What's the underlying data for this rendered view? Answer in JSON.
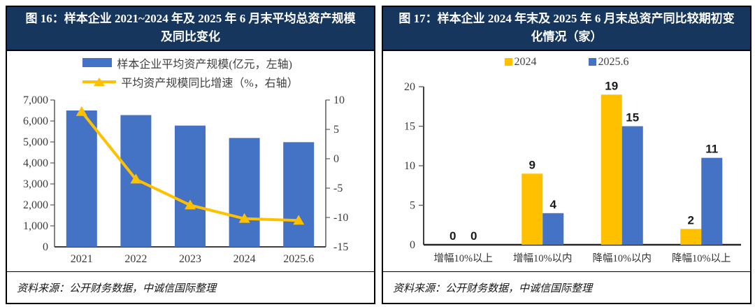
{
  "panels": [
    {
      "id": "figure-16",
      "source": "资料来源：公开财务数据，中诚信国际整理"
    },
    {
      "id": "figure-17",
      "source": "资料来源：公开财务数据，中诚信国际整理"
    }
  ],
  "colors": {
    "header_navy": "#17365D",
    "bar_blue": "#4472C4",
    "accent_yellow": "#FFC000",
    "axis_gray": "#595959"
  },
  "chart_data": [
    {
      "type": "bar+line",
      "title": "图 16：样本企业 2021~2024 年及 2025 年 6 月末平均总资产规模及同比变化",
      "categories": [
        "2021",
        "2022",
        "2023",
        "2024",
        "2025.6"
      ],
      "series": [
        {
          "name": "样本企业平均资产规模(亿元，左轴)",
          "kind": "bar",
          "axis": "left",
          "color": "#4472C4",
          "values": [
            6500,
            6280,
            5780,
            5190,
            4990
          ]
        },
        {
          "name": "平均资产规模同比增速（%，右轴）",
          "kind": "line",
          "axis": "right",
          "color": "#FFC000",
          "values": [
            8,
            -3.5,
            -7.9,
            -10.2,
            -10.5
          ]
        }
      ],
      "left_axis": {
        "min": 0,
        "max": 7000,
        "step": 1000,
        "tick_labels": [
          "7,000",
          "6,000",
          "5,000",
          "4,000",
          "3,000",
          "2,000",
          "1,000",
          "0"
        ]
      },
      "right_axis": {
        "min": -15,
        "max": 10,
        "step": 5,
        "tick_labels": [
          "10",
          "5",
          "0",
          "-5",
          "-10",
          "-15"
        ]
      },
      "grid": false,
      "legend_position": "top"
    },
    {
      "type": "bar",
      "title": "图 17：样本企业 2024 年末及 2025 年 6 月末总资产同比较期初变化情况（家）",
      "categories": [
        "增幅10%以上",
        "增幅10%以内",
        "降幅10%以内",
        "降幅10%以上"
      ],
      "series": [
        {
          "name": "2024",
          "color": "#FFC000",
          "values": [
            0,
            9,
            19,
            2
          ]
        },
        {
          "name": "2025.6",
          "color": "#4472C4",
          "values": [
            0,
            4,
            15,
            11
          ]
        }
      ],
      "ylim": [
        0,
        20
      ],
      "ystep": 5,
      "ytick_labels": [
        "20",
        "15",
        "10",
        "5",
        "0"
      ],
      "data_labels": true,
      "grid": false,
      "legend_position": "top"
    }
  ]
}
